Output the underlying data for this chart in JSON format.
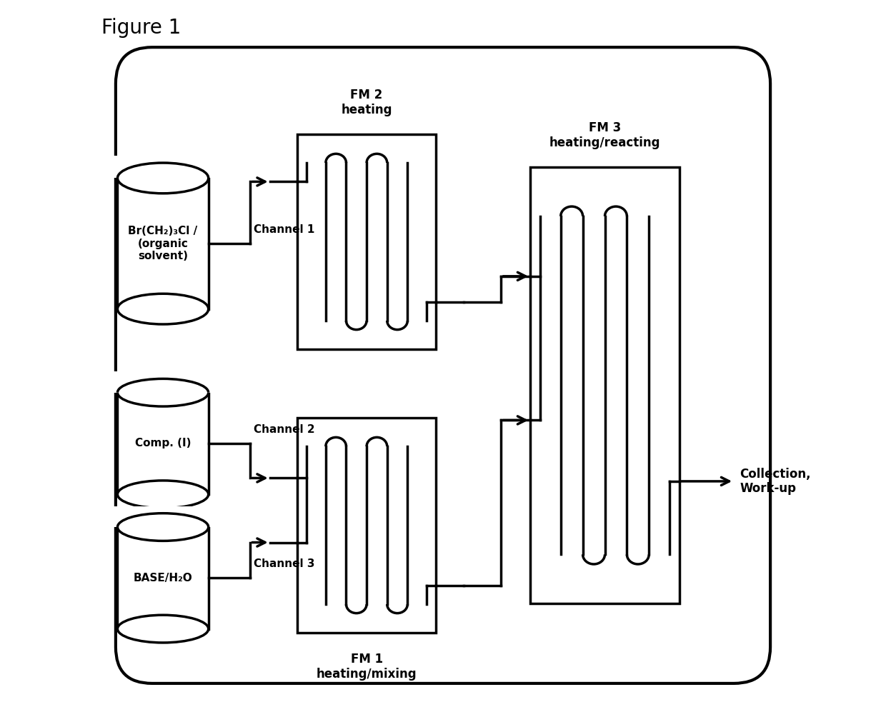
{
  "title": "Figure 1",
  "bg_color": "#ffffff",
  "text_color": "#000000",
  "cylinder1_label": "Br(CH₂)₃Cl /\n(organic\nsolvent)",
  "cylinder2_label": "Comp. (I)",
  "cylinder3_label": "BASE/H₂O",
  "channel1_label": "Channel 1",
  "channel2_label": "Channel 2",
  "channel3_label": "Channel 3",
  "fm1_label": "FM 1\nheating/mixing",
  "fm2_label": "FM 2\nheating",
  "fm3_label": "FM 3\nheating/reacting",
  "collection_label": "Collection,\nWork-up",
  "lw": 2.5,
  "fig_width": 12.4,
  "fig_height": 10.18,
  "dpi": 100
}
